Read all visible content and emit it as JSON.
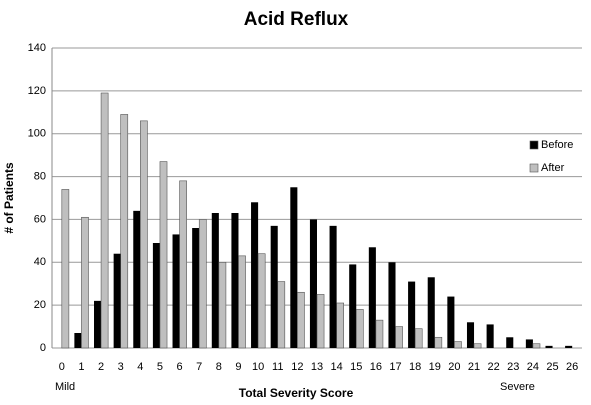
{
  "chart_data": {
    "type": "bar",
    "title": "Acid Reflux",
    "x_label": "Total Severity Score",
    "y_label": "# of Patients",
    "annotations": [
      "Mild",
      "Severe"
    ],
    "categories": [
      "0",
      "1",
      "2",
      "3",
      "4",
      "5",
      "6",
      "7",
      "8",
      "9",
      "10",
      "11",
      "12",
      "13",
      "14",
      "15",
      "16",
      "17",
      "18",
      "19",
      "20",
      "21",
      "22",
      "23",
      "24",
      "25",
      "26"
    ],
    "series": [
      {
        "name": "Before",
        "color": "#000000",
        "values": [
          0,
          7,
          22,
          44,
          64,
          49,
          53,
          56,
          63,
          63,
          68,
          57,
          75,
          60,
          57,
          39,
          47,
          40,
          31,
          33,
          24,
          12,
          11,
          5,
          4,
          1,
          1
        ]
      },
      {
        "name": "After",
        "color": "#bfbfbf",
        "values": [
          74,
          61,
          119,
          109,
          106,
          87,
          78,
          60,
          40,
          43,
          44,
          31,
          26,
          25,
          21,
          18,
          13,
          10,
          9,
          5,
          3,
          2,
          0,
          0,
          2,
          0,
          0
        ]
      }
    ],
    "ylim": [
      0,
      140
    ],
    "yticks": [
      0,
      20,
      40,
      60,
      80,
      100,
      120,
      140
    ],
    "grid": true,
    "legend": "right"
  }
}
